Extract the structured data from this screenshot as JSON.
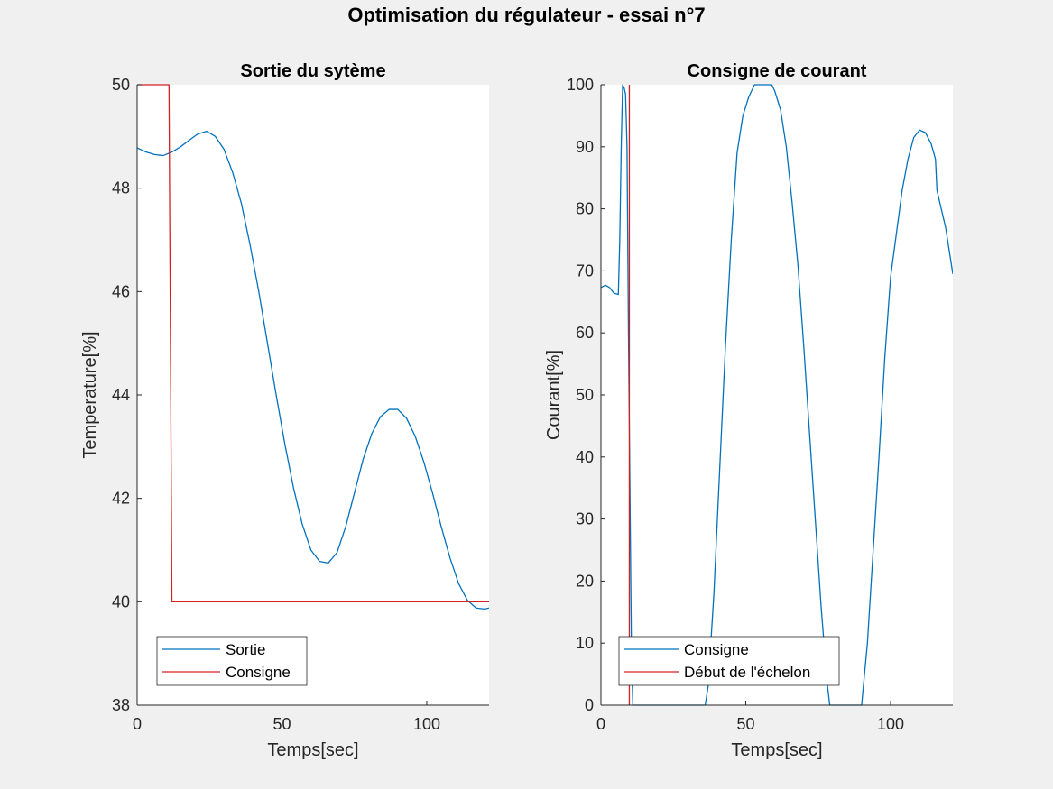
{
  "figure": {
    "title": "Optimisation du régulateur - essai n°7"
  },
  "colors": {
    "blue": "#0072bd",
    "red": "#d62020",
    "axes": "#262626",
    "background": "#f0f0f0",
    "plot_bg": "#ffffff"
  },
  "chart_data": [
    {
      "type": "line",
      "title": "Sortie du sytème",
      "xlabel": "Temps[sec]",
      "ylabel": "Temperature[%]",
      "xlim": [
        0,
        121.5
      ],
      "ylim": [
        38,
        50
      ],
      "xticks": [
        0,
        50,
        100
      ],
      "yticks": [
        38,
        40,
        42,
        44,
        46,
        48,
        50
      ],
      "grid": false,
      "legend_position": "bottom-left",
      "series": [
        {
          "name": "Sortie",
          "color": "#0072bd",
          "x": [
            0,
            3,
            6,
            9,
            12,
            15,
            18,
            21,
            24,
            27,
            30,
            33,
            36,
            39,
            42,
            45,
            48,
            51,
            54,
            57,
            60,
            63,
            66,
            69,
            72,
            75,
            78,
            81,
            84,
            87,
            90,
            93,
            96,
            99,
            102,
            105,
            108,
            111,
            114,
            117,
            120,
            121.5
          ],
          "y": [
            48.78,
            48.7,
            48.65,
            48.63,
            48.7,
            48.8,
            48.93,
            49.05,
            49.1,
            49.0,
            48.75,
            48.3,
            47.7,
            46.9,
            46.0,
            45.0,
            44.0,
            43.05,
            42.2,
            41.5,
            41.0,
            40.78,
            40.75,
            40.95,
            41.45,
            42.1,
            42.75,
            43.25,
            43.58,
            43.72,
            43.72,
            43.55,
            43.2,
            42.7,
            42.1,
            41.45,
            40.85,
            40.35,
            40.03,
            39.88,
            39.86,
            39.88
          ]
        },
        {
          "name": "Consigne",
          "color": "#d62020",
          "x": [
            0,
            11,
            12,
            121.5
          ],
          "y": [
            50,
            50,
            40,
            40
          ]
        }
      ]
    },
    {
      "type": "line",
      "title": "Consigne de courant",
      "xlabel": "Temps[sec]",
      "ylabel": "Courant[%]",
      "xlim": [
        0,
        121.5
      ],
      "ylim": [
        0,
        100
      ],
      "xticks": [
        0,
        50,
        100
      ],
      "yticks": [
        0,
        10,
        20,
        30,
        40,
        50,
        60,
        70,
        80,
        90,
        100
      ],
      "grid": false,
      "legend_position": "bottom-left",
      "series": [
        {
          "name": "Consigne",
          "color": "#0072bd",
          "x": [
            0,
            1.5,
            3,
            4.5,
            6,
            6.5,
            7,
            7.5,
            8,
            8.5,
            9,
            9.5,
            10,
            10.5,
            11,
            11.5,
            12,
            36,
            37,
            39,
            41,
            43,
            45,
            47,
            49,
            51,
            53,
            55,
            56,
            59,
            60,
            62,
            64,
            66,
            68,
            70,
            72,
            74,
            76,
            78,
            79,
            90,
            92,
            94,
            96,
            98,
            100,
            102,
            104,
            106,
            108,
            110,
            112,
            114,
            115.5,
            116,
            117,
            119,
            121,
            121.5
          ],
          "y": [
            67.3,
            67.7,
            67.3,
            66.4,
            66.2,
            75,
            90,
            100,
            99.5,
            98.5,
            90,
            60,
            35,
            10,
            0,
            0,
            0,
            0,
            3,
            18,
            38,
            58,
            75,
            89,
            95,
            98,
            100,
            100,
            100,
            100,
            99,
            96,
            90,
            81,
            71,
            58,
            44,
            30,
            16,
            4,
            0,
            0,
            10,
            25,
            40,
            56,
            69,
            76,
            83,
            88,
            91.5,
            92.7,
            92.3,
            90.5,
            88,
            83,
            81,
            77,
            71,
            69.5
          ]
        },
        {
          "name": "Début de l'échelon",
          "color": "#d62020",
          "x": [
            9.8,
            9.8
          ],
          "y": [
            0,
            100
          ]
        }
      ]
    }
  ]
}
